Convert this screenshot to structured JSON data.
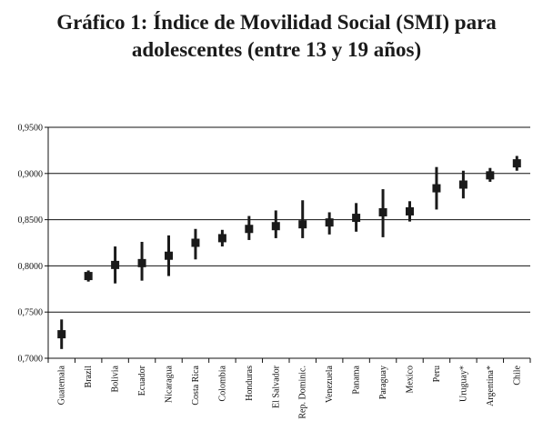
{
  "title": {
    "line1": "Gráfico 1:  Índice de Movilidad Social (SMI) para",
    "line2": "adolescentes (entre 13 y 19 años)"
  },
  "chart_data": {
    "type": "scatter",
    "title": "Gráfico 1:  Índice de Movilidad Social (SMI) para adolescentes (entre 13 y 19 años)",
    "xlabel": "",
    "ylabel": "",
    "ylim": [
      0.7,
      0.95
    ],
    "yticks": [
      0.7,
      0.75,
      0.8,
      0.85,
      0.9,
      0.95
    ],
    "ytick_labels": [
      "0,7000",
      "0,7500",
      "0,8000",
      "0,8500",
      "0,9000",
      "0,9500"
    ],
    "grid": "horizontal",
    "categories": [
      "Guatemala",
      "Brazil",
      "Bolivia",
      "Ecuador",
      "Nicaragua",
      "Costa Rica",
      "Colombia",
      "Honduras",
      "El Salvador",
      "Rep. Dominic.",
      "Venezuela",
      "Panama",
      "Paraguay",
      "Mexico",
      "Peru",
      "Uruguay*",
      "Argentina*",
      "Chile"
    ],
    "values": [
      0.726,
      0.789,
      0.801,
      0.803,
      0.811,
      0.825,
      0.83,
      0.84,
      0.843,
      0.845,
      0.847,
      0.852,
      0.858,
      0.859,
      0.884,
      0.888,
      0.898,
      0.911
    ],
    "lower": [
      0.71,
      0.783,
      0.781,
      0.784,
      0.789,
      0.807,
      0.821,
      0.828,
      0.83,
      0.83,
      0.834,
      0.837,
      0.831,
      0.848,
      0.861,
      0.873,
      0.891,
      0.903
    ],
    "upper": [
      0.742,
      0.795,
      0.821,
      0.826,
      0.833,
      0.84,
      0.839,
      0.854,
      0.86,
      0.871,
      0.858,
      0.868,
      0.883,
      0.87,
      0.907,
      0.903,
      0.906,
      0.919
    ],
    "marker_color": "#1a1a1a",
    "grid_color": "#111111"
  }
}
